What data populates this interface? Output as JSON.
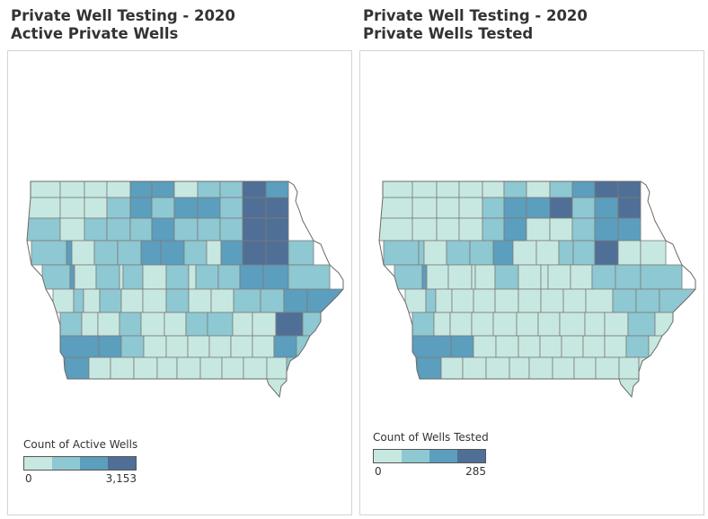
{
  "colors": {
    "bin0": "#c7e8e0",
    "bin1": "#8ec8d2",
    "bin2": "#5b9ebd",
    "bin3": "#4f6f96",
    "county_border": "#7c7c7c",
    "state_outline": "#6a6a6a"
  },
  "panels": [
    {
      "title_line1": "Private Well Testing - 2020",
      "title_line2": "Active Private Wells",
      "legend": {
        "title": "Count of Active Wells",
        "min_label": "0",
        "max_label": "3,153"
      },
      "county_bins": [
        [
          0,
          0,
          0,
          0,
          2,
          2,
          0,
          1,
          1,
          3,
          2
        ],
        [
          0,
          0,
          0,
          1,
          2,
          1,
          2,
          2,
          1,
          3,
          3
        ],
        [
          1,
          0,
          1,
          1,
          1,
          2,
          1,
          1,
          1,
          3,
          3
        ],
        [
          1,
          2,
          0,
          1,
          1,
          2,
          2,
          1,
          0,
          2,
          3,
          3,
          1
        ],
        [
          1,
          2,
          0,
          1,
          0,
          1,
          0,
          1,
          0,
          1,
          1,
          2,
          2,
          1
        ],
        [
          0,
          1,
          0,
          1,
          0,
          0,
          1,
          0,
          0,
          1,
          1,
          2,
          2,
          3
        ],
        [
          1,
          0,
          0,
          1,
          0,
          0,
          1,
          1,
          0,
          0,
          3,
          1
        ],
        [
          2,
          2,
          1,
          0,
          0,
          0,
          0,
          0,
          0,
          2,
          1,
          0
        ],
        [
          2,
          0,
          0,
          0,
          0,
          0,
          0,
          0,
          0,
          0,
          1,
          1
        ],
        [
          0,
          0,
          0,
          0,
          0,
          0,
          0,
          0,
          0,
          0,
          0,
          1
        ]
      ]
    },
    {
      "title_line1": "Private Well Testing - 2020",
      "title_line2": "Private Wells Tested",
      "legend": {
        "title": "Count of Wells Tested",
        "min_label": "0",
        "max_label": "285"
      },
      "county_bins": [
        [
          0,
          0,
          0,
          0,
          0,
          1,
          0,
          1,
          2,
          3,
          3
        ],
        [
          0,
          0,
          0,
          0,
          1,
          2,
          2,
          3,
          1,
          2,
          3
        ],
        [
          0,
          0,
          0,
          0,
          1,
          2,
          0,
          0,
          1,
          2,
          2
        ],
        [
          1,
          1,
          0,
          1,
          1,
          2,
          0,
          0,
          1,
          1,
          3,
          0,
          0
        ],
        [
          1,
          2,
          0,
          0,
          0,
          0,
          1,
          0,
          0,
          0,
          0,
          1,
          1,
          1
        ],
        [
          0,
          1,
          0,
          0,
          0,
          0,
          0,
          0,
          0,
          0,
          1,
          1,
          1,
          2
        ],
        [
          1,
          0,
          0,
          0,
          0,
          0,
          0,
          0,
          0,
          0,
          1,
          0
        ],
        [
          2,
          2,
          0,
          0,
          0,
          0,
          0,
          0,
          0,
          1,
          0,
          0
        ],
        [
          2,
          0,
          0,
          0,
          0,
          0,
          0,
          0,
          0,
          0,
          0,
          0
        ],
        [
          0,
          0,
          0,
          0,
          0,
          0,
          0,
          0,
          0,
          0,
          0,
          0
        ]
      ]
    }
  ]
}
